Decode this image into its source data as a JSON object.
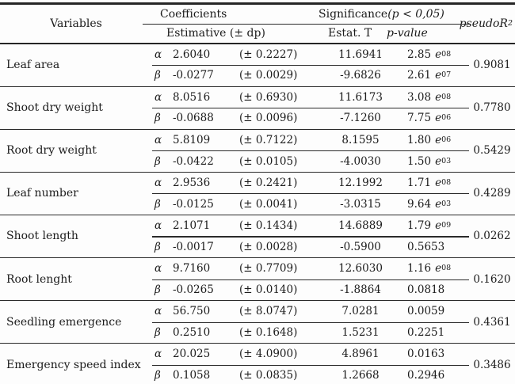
{
  "page": {
    "background": "#fdfdfd",
    "text_color": "#1b1b1b",
    "line_color": "#2a2a2a"
  },
  "table": {
    "header": {
      "variables": "Variables",
      "coefficients": "Coefficients",
      "estimative": "Estimative (± dp)",
      "significance_plain": "Significance ",
      "significance_italic": "(p < 0,05)",
      "estat_t": "Estat. T",
      "p_value": "p-value",
      "pseudo_r": "pseudoR",
      "pseudo_r_sup": "2"
    },
    "rows": [
      {
        "variable": "Leaf area",
        "r2": "0.9081",
        "a": {
          "sym": "α",
          "est": "2.6040",
          "dp": "(± 0.2227)",
          "t": "11.6941",
          "p": "2.85",
          "pe": "e",
          "pexp": "08"
        },
        "b": {
          "sym": "β",
          "est": "-0.0277",
          "dp": "(± 0.0029)",
          "t": "-9.6826",
          "p": "2.61",
          "pe": "e",
          "pexp": "07"
        }
      },
      {
        "variable": "Shoot dry weight",
        "r2": "0.7780",
        "a": {
          "sym": "α",
          "est": "8.0516",
          "dp": "(± 0.6930)",
          "t": "11.6173",
          "p": "3.08",
          "pe": "e",
          "pexp": "08"
        },
        "b": {
          "sym": "β",
          "est": "-0.0688",
          "dp": "(± 0.0096)",
          "t": "-7.1260",
          "p": "7.75",
          "pe": "e",
          "pexp": "06"
        }
      },
      {
        "variable": "Root dry weight",
        "r2": "0.5429",
        "a": {
          "sym": "α",
          "est": "5.8109",
          "dp": "(± 0.7122)",
          "t": "8.1595",
          "p": "1.80",
          "pe": "e",
          "pexp": "06"
        },
        "b": {
          "sym": "β",
          "est": "-0.0422",
          "dp": "(± 0.0105)",
          "t": "-4.0030",
          "p": "1.50",
          "pe": "e",
          "pexp": "03"
        }
      },
      {
        "variable": "Leaf number",
        "r2": "0.4289",
        "a": {
          "sym": "α",
          "est": "2.9536",
          "dp": "(± 0.2421)",
          "t": "12.1992",
          "p": "1.71",
          "pe": "e",
          "pexp": "08"
        },
        "b": {
          "sym": "β",
          "est": "-0.0125",
          "dp": "(± 0.0041)",
          "t": "-3.0315",
          "p": "9.64",
          "pe": "e",
          "pexp": "03"
        }
      },
      {
        "variable": "Shoot length",
        "r2": "0.0262",
        "a": {
          "sym": "α",
          "est": "2.1071",
          "dp": "(± 0.1434)",
          "t": "14.6889",
          "p": "1.79",
          "pe": "e",
          "pexp": "09"
        },
        "b": {
          "sym": "β",
          "est": "-0.0017",
          "dp": "(± 0.0028)",
          "t": "-0.5900",
          "p": "0.5653",
          "pe": "",
          "pexp": ""
        }
      },
      {
        "variable": "Root lenght",
        "r2": "0.1620",
        "a": {
          "sym": "α",
          "est": "9.7160",
          "dp": "(± 0.7709)",
          "t": "12.6030",
          "p": "1.16",
          "pe": "e",
          "pexp": "08"
        },
        "b": {
          "sym": "β",
          "est": "-0.0265",
          "dp": "(± 0.0140)",
          "t": "-1.8864",
          "p": "0.0818",
          "pe": "",
          "pexp": ""
        }
      },
      {
        "variable": "Seedling emergence",
        "r2": "0.4361",
        "a": {
          "sym": "α",
          "est": "56.750",
          "dp": "(± 8.0747)",
          "t": "7.0281",
          "p": "0.0059",
          "pe": "",
          "pexp": ""
        },
        "b": {
          "sym": "β",
          "est": "0.2510",
          "dp": "(± 0.1648)",
          "t": "1.5231",
          "p": "0.2251",
          "pe": "",
          "pexp": ""
        }
      },
      {
        "variable": "Emergency speed index",
        "r2": "0.3486",
        "a": {
          "sym": "α",
          "est": "20.025",
          "dp": "(± 4.0900)",
          "t": "4.8961",
          "p": "0.0163",
          "pe": "",
          "pexp": ""
        },
        "b": {
          "sym": "β",
          "est": "0.1058",
          "dp": "(± 0.0835)",
          "t": "1.2668",
          "p": "0.2946",
          "pe": "",
          "pexp": ""
        }
      }
    ]
  }
}
